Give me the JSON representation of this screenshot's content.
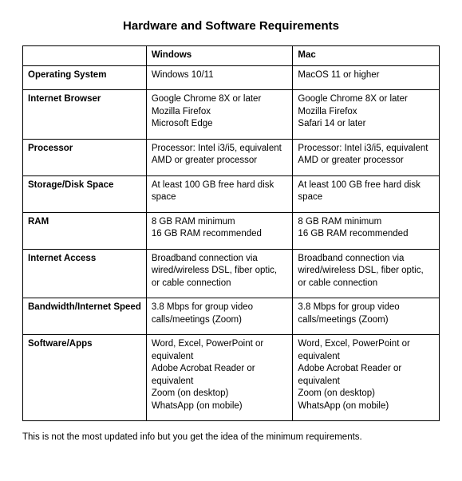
{
  "title": "Hardware and Software Requirements",
  "columns": [
    "",
    "Windows",
    "Mac"
  ],
  "rows": [
    {
      "label": "Operating System",
      "windows": [
        "Windows 10/11"
      ],
      "mac": [
        "MacOS 11 or higher"
      ]
    },
    {
      "label": "Internet Browser",
      "windows": [
        "Google Chrome 8X or later",
        "Mozilla Firefox",
        "Microsoft Edge"
      ],
      "mac": [
        "Google Chrome 8X or later",
        "Mozilla Firefox",
        "Safari 14 or later"
      ]
    },
    {
      "label": "Processor",
      "windows": [
        "Processor: Intel i3/i5, equivalent AMD or greater processor"
      ],
      "mac": [
        "Processor: Intel i3/i5, equivalent AMD or greater processor"
      ]
    },
    {
      "label": "Storage/Disk Space",
      "windows": [
        "At least 100 GB free hard disk space"
      ],
      "mac": [
        "At least 100 GB free hard disk space"
      ]
    },
    {
      "label": "RAM",
      "windows": [
        "8 GB RAM minimum",
        "16 GB RAM recommended"
      ],
      "mac": [
        "8 GB RAM minimum",
        "16 GB RAM recommended"
      ]
    },
    {
      "label": "Internet Access",
      "windows": [
        "Broadband connection via wired/wireless DSL, fiber optic, or cable connection"
      ],
      "mac": [
        "Broadband connection via wired/wireless DSL, fiber optic, or cable connection"
      ]
    },
    {
      "label": "Bandwidth/Internet Speed",
      "windows": [
        "3.8 Mbps for group video calls/meetings (Zoom)"
      ],
      "mac": [
        "3.8 Mbps for group video calls/meetings (Zoom)"
      ]
    },
    {
      "label": "Software/Apps",
      "windows": [
        "Word, Excel, PowerPoint or equivalent",
        "Adobe Acrobat Reader or equivalent",
        "Zoom (on desktop)",
        "WhatsApp (on mobile)"
      ],
      "mac": [
        "Word, Excel, PowerPoint or equivalent",
        "Adobe Acrobat Reader or equivalent",
        "Zoom (on desktop)",
        "WhatsApp (on mobile)"
      ]
    }
  ],
  "footnote": "This is not the most updated info but you get the idea of the minimum requirements.",
  "colors": {
    "background": "#ffffff",
    "text": "#000000",
    "border": "#000000"
  },
  "typography": {
    "title_fontsize": 15,
    "body_fontsize": 11.5,
    "font_family": "Arial"
  },
  "column_widths_pct": [
    34,
    33,
    33
  ]
}
